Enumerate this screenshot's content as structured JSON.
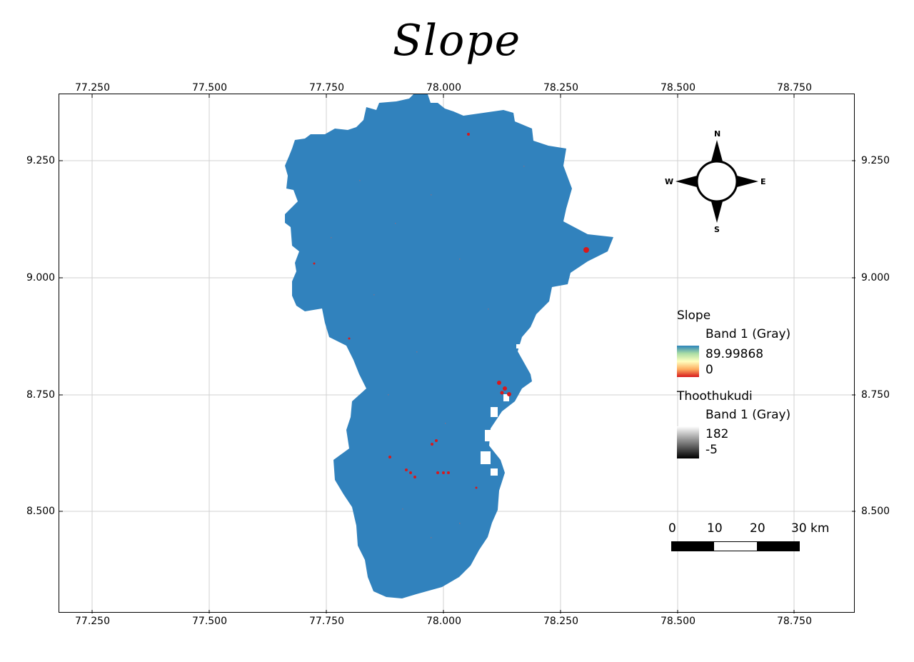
{
  "title": "Slope",
  "map": {
    "x_ticks": [
      "77.250",
      "77.500",
      "77.750",
      "78.000",
      "78.250",
      "78.500",
      "78.750"
    ],
    "y_ticks": [
      "9.250",
      "9.000",
      "8.750",
      "8.500"
    ],
    "region_color": "#3182bd",
    "steep_color": "#d7191c"
  },
  "compass": {
    "n": "N",
    "s": "S",
    "e": "E",
    "w": "W"
  },
  "legend": {
    "layer1_name": "Slope",
    "layer1_band": "Band 1 (Gray)",
    "layer1_max": "89.99868",
    "layer1_min": "0",
    "layer2_name": "Thoothukudi",
    "layer2_band": "Band 1 (Gray)",
    "layer2_max": "182",
    "layer2_min": "-5"
  },
  "scale_bar": {
    "labels": [
      "0",
      "10",
      "20",
      "30 km"
    ]
  }
}
